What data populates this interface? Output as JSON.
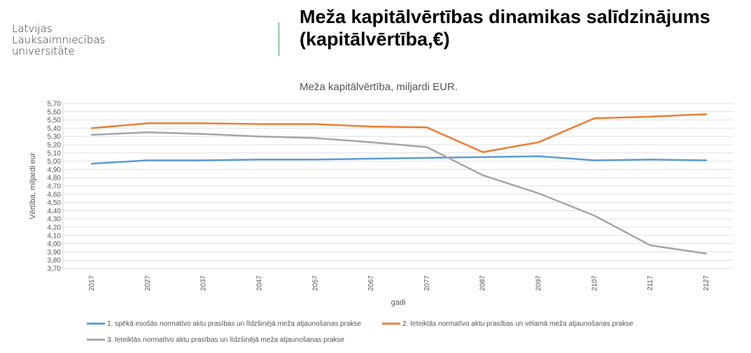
{
  "logo": {
    "lines": [
      "Latvijas",
      "Lauksaimniecības",
      "universitāte"
    ]
  },
  "slide_title": {
    "line1": "Meža kapitālvērtības dinamikas salīdzinājums",
    "line2": "(kapitālvērtība,€)"
  },
  "chart_data": {
    "type": "line",
    "title": "Meža kapitālvērtība, miljardi EUR.",
    "xlabel": "gadi",
    "ylabel": "Vērtība, miljardi eur",
    "ylim": [
      3.7,
      5.7
    ],
    "ytick_step": 0.1,
    "grid": true,
    "legend_position": "bottom",
    "categories": [
      "2017",
      "2027",
      "2037",
      "2047",
      "2057",
      "2067",
      "2077",
      "2087",
      "2097",
      "2107",
      "2117",
      "2127"
    ],
    "series": [
      {
        "name": "1. spēkā esošās normatīvo aktu prasības un līdzšinējā meža atjaunošanas prakse",
        "color": "#5b9bd5",
        "values": [
          4.97,
          5.01,
          5.01,
          5.02,
          5.02,
          5.03,
          5.04,
          5.05,
          5.06,
          5.01,
          5.02,
          5.01
        ]
      },
      {
        "name": "2. Ieteiktās normatīvo aktu prasības un vēlamā meža atjaunošanas prakse",
        "color": "#ed7d31",
        "values": [
          5.4,
          5.46,
          5.46,
          5.45,
          5.45,
          5.42,
          5.41,
          5.11,
          5.23,
          5.52,
          5.54,
          5.57
        ]
      },
      {
        "name": "3. Ieteiktās normatīvo aktu prasības un līdzšinējā meža atjaunošanas prakse",
        "color": "#a5a5a5",
        "values": [
          5.32,
          5.35,
          5.33,
          5.3,
          5.28,
          5.23,
          5.17,
          4.83,
          4.61,
          4.34,
          3.98,
          3.88
        ]
      }
    ]
  }
}
